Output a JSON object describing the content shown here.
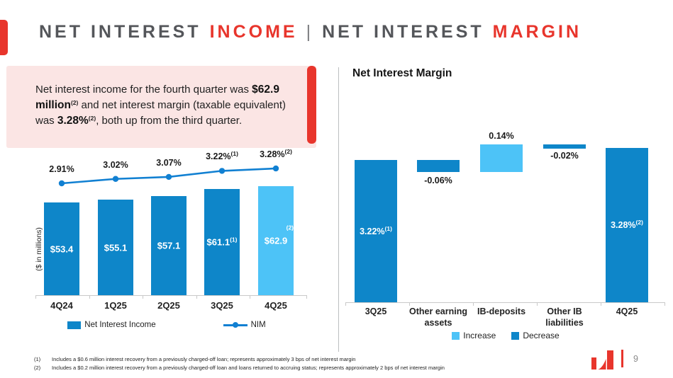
{
  "header": {
    "segments": [
      {
        "text": "NET INTEREST"
      },
      {
        "text": "INCOME"
      },
      {
        "text": "|"
      },
      {
        "text": "NET INTEREST"
      },
      {
        "text": "MARGIN"
      }
    ]
  },
  "callout": {
    "text_1": "Net interest income for the fourth quarter was ",
    "strong_1": "$62.9 million",
    "sup_1": "(2)",
    "text_2": " and net interest margin (taxable equivalent) was ",
    "strong_2": "3.28%",
    "sup_2": "(2)",
    "text_3": ", both up from the third quarter."
  },
  "chart_data": [
    {
      "type": "bar",
      "subtype": "combo-bar-line",
      "categories": [
        "4Q24",
        "1Q25",
        "2Q25",
        "3Q25",
        "4Q25"
      ],
      "series": [
        {
          "name": "Net Interest Income",
          "type": "bar",
          "values": [
            53.4,
            55.1,
            57.1,
            61.1,
            62.9
          ],
          "data_labels": [
            "$53.4",
            "$55.1",
            "$57.1",
            "$61.1",
            "$62.9"
          ],
          "data_label_superscripts": [
            "",
            "",
            "",
            "(1)",
            "(2)"
          ],
          "bar_colors": [
            "#0E86C9",
            "#0E86C9",
            "#0E86C9",
            "#0E86C9",
            "#4DC3F7"
          ]
        },
        {
          "name": "NIM",
          "type": "line",
          "values": [
            2.91,
            3.02,
            3.07,
            3.22,
            3.28
          ],
          "data_labels": [
            "2.91%",
            "3.02%",
            "3.07%",
            "3.22%",
            "3.28%"
          ],
          "data_label_superscripts": [
            "",
            "",
            "",
            "(1)",
            "(2)"
          ],
          "color": "#1180D2"
        }
      ],
      "ylabel": "($ in millions)",
      "legend": [
        "Net Interest Income",
        "NIM"
      ],
      "legend_position": "bottom"
    },
    {
      "type": "waterfall",
      "title": "Net Interest Margin",
      "categories": [
        "3Q25",
        "Other earning assets",
        "IB-deposits",
        "Other IB liabilities",
        "4Q25"
      ],
      "values": [
        3.22,
        -0.06,
        0.14,
        -0.02,
        3.28
      ],
      "data_labels": [
        "3.22%",
        "-0.06%",
        "0.14%",
        "-0.02%",
        "3.28%"
      ],
      "data_label_superscripts": [
        "(1)",
        "",
        "",
        "",
        "(2)"
      ],
      "bar_kinds": [
        "total",
        "decrease",
        "increase",
        "decrease",
        "total"
      ],
      "legend": [
        {
          "label": "Increase",
          "color": "#4DC3F7"
        },
        {
          "label": "Decrease",
          "color": "#0E86C9"
        }
      ],
      "legend_position": "bottom"
    }
  ],
  "footnotes": [
    {
      "marker": "(1)",
      "text": "Includes a $0.6 million interest recovery from a previously charged-off loan; represents approximately 3 bps of net interest margin"
    },
    {
      "marker": "(2)",
      "text": "Includes a $0.2 million interest recovery from a previously charged-off loan and loans returned to accruing status; represents approximately 2 bps of net interest margin"
    }
  ],
  "footer": {
    "page_number": "9"
  },
  "colors": {
    "accent_red": "#E8352C",
    "dark_blue": "#0E86C9",
    "light_blue": "#4DC3F7",
    "line_blue": "#1180D2",
    "callout_bg": "#FBE5E4",
    "title_gray": "#54565A"
  }
}
